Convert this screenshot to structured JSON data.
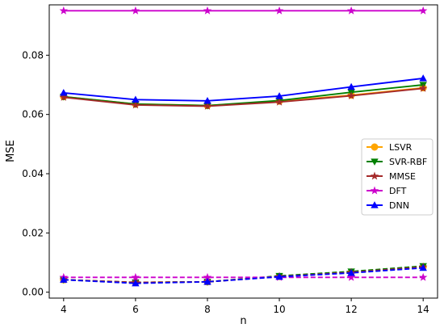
{
  "chart_data": {
    "type": "line",
    "title": "",
    "xlabel": "n",
    "ylabel": "MSE",
    "x": [
      4,
      6,
      8,
      10,
      12,
      14
    ],
    "xlim": [
      3.6,
      14.4
    ],
    "ylim": [
      -0.002,
      0.097
    ],
    "xticks": [
      4,
      6,
      8,
      10,
      12,
      14
    ],
    "yticks": [
      0.0,
      0.02,
      0.04,
      0.06,
      0.08
    ],
    "ytick_labels": [
      "0.00",
      "0.02",
      "0.04",
      "0.06",
      "0.08"
    ],
    "grid": false,
    "legend": {
      "position": "right",
      "entries": [
        "LSVR",
        "SVR-RBF",
        "MMSE",
        "DFT",
        "DNN"
      ]
    },
    "series": [
      {
        "name": "LSVR",
        "color": "#ffa500",
        "marker": "circle",
        "linestyle": "solid",
        "values": [
          0.066,
          0.0635,
          0.063,
          0.0645,
          0.0665,
          0.069
        ]
      },
      {
        "name": "SVR-RBF",
        "color": "#008000",
        "marker": "triangle-down",
        "linestyle": "solid",
        "values": [
          0.066,
          0.0635,
          0.063,
          0.0647,
          0.0675,
          0.07
        ]
      },
      {
        "name": "MMSE",
        "color": "#a52a2a",
        "marker": "star",
        "linestyle": "solid",
        "values": [
          0.0658,
          0.0632,
          0.0628,
          0.0642,
          0.0663,
          0.0688
        ]
      },
      {
        "name": "DFT",
        "color": "#cc00cc",
        "marker": "star",
        "linestyle": "solid",
        "values": [
          0.095,
          0.095,
          0.095,
          0.095,
          0.095,
          0.095
        ]
      },
      {
        "name": "DNN",
        "color": "#0000ff",
        "marker": "triangle-up",
        "linestyle": "solid",
        "values": [
          0.0673,
          0.065,
          0.0646,
          0.0662,
          0.0693,
          0.0722
        ]
      },
      {
        "name": "LSVR",
        "color": "#ffa500",
        "marker": "circle",
        "linestyle": "dashed",
        "values": [
          0.0042,
          0.0033,
          0.0035,
          0.0053,
          0.0067,
          0.0085
        ]
      },
      {
        "name": "SVR-RBF",
        "color": "#008000",
        "marker": "triangle-down",
        "linestyle": "dashed",
        "values": [
          0.0042,
          0.0033,
          0.0035,
          0.0055,
          0.007,
          0.0088
        ]
      },
      {
        "name": "MMSE",
        "color": "#a52a2a",
        "marker": "star",
        "linestyle": "dashed",
        "values": [
          0.0042,
          0.0033,
          0.0035,
          0.0053,
          0.0067,
          0.0085
        ]
      },
      {
        "name": "DFT",
        "color": "#cc00cc",
        "marker": "star",
        "linestyle": "dashed",
        "values": [
          0.005,
          0.005,
          0.005,
          0.005,
          0.005,
          0.005
        ]
      },
      {
        "name": "DNN",
        "color": "#0000ff",
        "marker": "triangle-up",
        "linestyle": "dashed",
        "values": [
          0.0042,
          0.003,
          0.0035,
          0.0052,
          0.0065,
          0.0082
        ]
      }
    ]
  }
}
